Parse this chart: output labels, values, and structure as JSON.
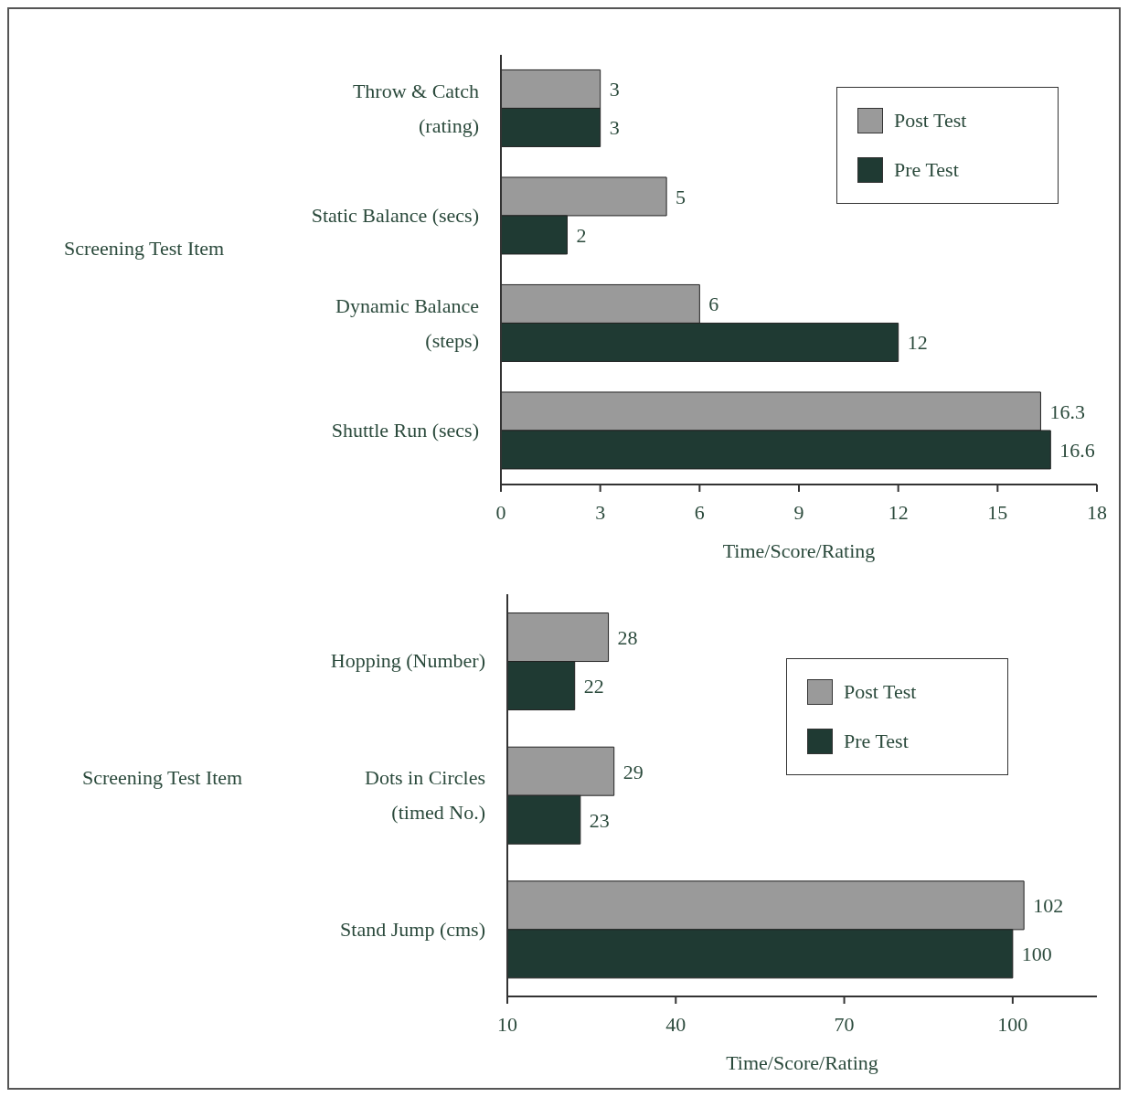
{
  "chart_data": [
    {
      "type": "bar",
      "orientation": "horizontal",
      "categories": [
        "Throw & Catch (rating)",
        "Static Balance (secs)",
        "Dynamic Balance (steps)",
        "Shuttle Run (secs)"
      ],
      "series": [
        {
          "name": "Post Test",
          "color": "#9a9a9a",
          "values": [
            3,
            5,
            6,
            16.3
          ]
        },
        {
          "name": "Pre Test",
          "color": "#1f3a33",
          "values": [
            3,
            2,
            12,
            16.6
          ]
        }
      ],
      "xlim": [
        0,
        18
      ],
      "xticks": [
        0,
        3,
        6,
        9,
        12,
        15,
        18
      ],
      "xlabel": "Time/Score/Rating",
      "ylabel": "Screening Test Item",
      "data_labels": true,
      "legend": "top right",
      "grid": false
    },
    {
      "type": "bar",
      "orientation": "horizontal",
      "categories": [
        "Hopping (Number)",
        "Dots in Circles (timed No.)",
        "Stand Jump (cms)"
      ],
      "series": [
        {
          "name": "Post Test",
          "color": "#9a9a9a",
          "values": [
            28,
            29,
            102
          ]
        },
        {
          "name": "Pre Test",
          "color": "#1f3a33",
          "values": [
            22,
            23,
            100
          ]
        }
      ],
      "xlim": [
        10,
        115
      ],
      "xticks": [
        10,
        40,
        70,
        100
      ],
      "xlabel": "Time/Score/Rating",
      "ylabel": "Screening Test Item",
      "data_labels": true,
      "legend": "top right",
      "grid": false
    }
  ]
}
